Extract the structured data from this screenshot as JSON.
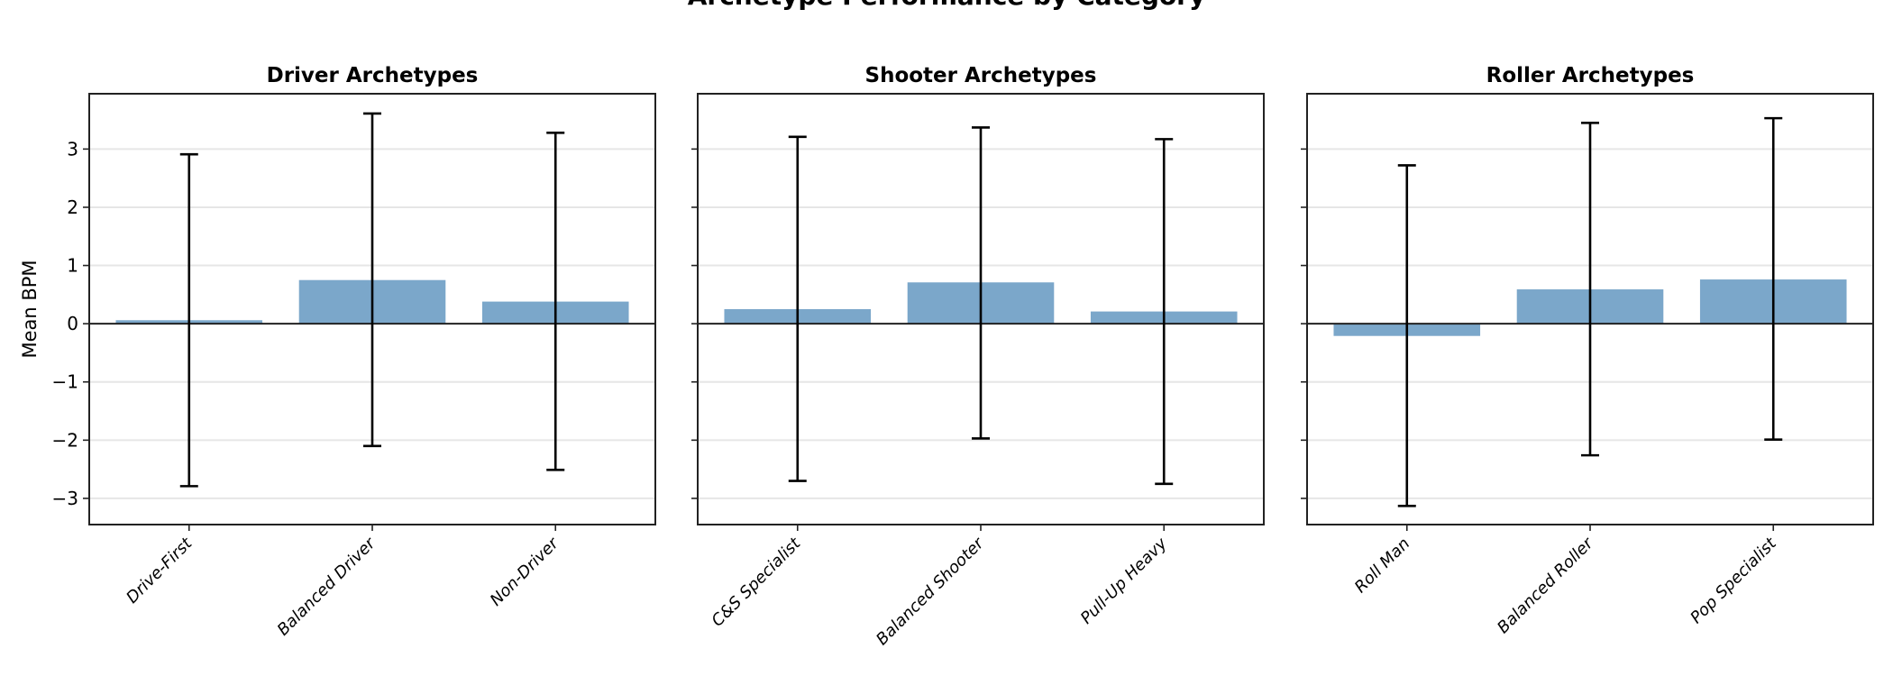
{
  "chart_data": {
    "type": "bar",
    "title": "Archetype Performance by Category",
    "ylabel": "Mean BPM",
    "ylim": [
      -3.45,
      3.95
    ],
    "yticks": [
      -3,
      -2,
      -1,
      0,
      1,
      2,
      3
    ],
    "ytick_labels": [
      "−3",
      "−2",
      "−1",
      "0",
      "1",
      "2",
      "3"
    ],
    "grid": "horizontal",
    "bar_color": "#7ba7ca",
    "error_bar_color": "#000000",
    "panels": [
      {
        "title": "Driver Archetypes",
        "categories": [
          "Drive-First",
          "Balanced Driver",
          "Non-Driver"
        ],
        "values": [
          0.06,
          0.75,
          0.38
        ],
        "error_low": [
          -2.79,
          -2.1,
          -2.51
        ],
        "error_high": [
          2.91,
          3.61,
          3.28
        ]
      },
      {
        "title": "Shooter Archetypes",
        "categories": [
          "C&S Specialist",
          "Balanced Shooter",
          "Pull-Up Heavy"
        ],
        "values": [
          0.25,
          0.71,
          0.21
        ],
        "error_low": [
          -2.7,
          -1.97,
          -2.75
        ],
        "error_high": [
          3.21,
          3.37,
          3.17
        ]
      },
      {
        "title": "Roller Archetypes",
        "categories": [
          "Roll Man",
          "Balanced Roller",
          "Pop Specialist"
        ],
        "values": [
          -0.21,
          0.59,
          0.76
        ],
        "error_low": [
          -3.13,
          -2.26,
          -1.99
        ],
        "error_high": [
          2.72,
          3.45,
          3.53
        ]
      }
    ]
  }
}
